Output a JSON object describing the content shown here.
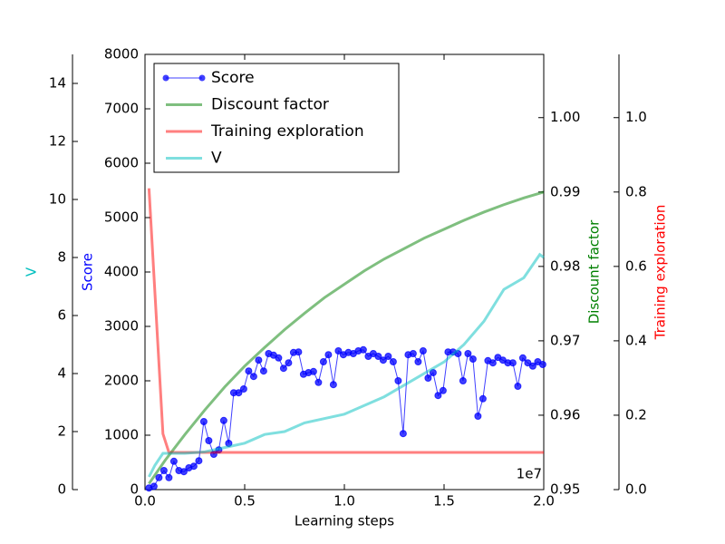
{
  "chart_data": {
    "type": "line",
    "x_label": "Learning steps",
    "x_offset_label": "1e7",
    "xlim": [
      0,
      2.0
    ],
    "xticks": [
      {
        "value": 0,
        "label": "0.0"
      },
      0.5,
      {
        "value": 1,
        "label": "1.0"
      },
      1.5,
      {
        "value": 2,
        "label": "2.0"
      }
    ],
    "legend": "upper left",
    "axes": [
      {
        "label": "Score",
        "ylim": [
          0,
          8000
        ],
        "yticks": [
          0,
          1000,
          2000,
          3000,
          4000,
          5000,
          6000,
          7000,
          8000
        ]
      },
      {
        "label": "Discount factor",
        "ylim": [
          0.95,
          1.0085
        ],
        "yticks": [
          0.95,
          0.96,
          0.97,
          0.98,
          0.99,
          {
            "value": 1,
            "label": "1.00"
          }
        ]
      },
      {
        "label": "Training exploration",
        "ylim": [
          0,
          1.17
        ],
        "yticks": [
          {
            "value": 0,
            "label": "0.0"
          },
          0.2,
          0.4,
          0.6,
          0.8,
          {
            "value": 1,
            "label": "1.0"
          }
        ]
      },
      {
        "label": "V",
        "ylim": [
          0,
          15
        ],
        "yticks": [
          0,
          2,
          4,
          6,
          8,
          10,
          12,
          14
        ]
      }
    ],
    "series": [
      {
        "name": "Score",
        "color": "#0000ff",
        "axis": 0,
        "marker": true,
        "x": [
          0.02,
          0.045,
          0.07,
          0.095,
          0.12,
          0.145,
          0.17,
          0.195,
          0.22,
          0.245,
          0.27,
          0.295,
          0.32,
          0.345,
          0.37,
          0.395,
          0.42,
          0.445,
          0.47,
          0.495,
          0.52,
          0.545,
          0.57,
          0.595,
          0.62,
          0.645,
          0.67,
          0.695,
          0.72,
          0.745,
          0.77,
          0.795,
          0.82,
          0.845,
          0.87,
          0.895,
          0.92,
          0.945,
          0.97,
          0.995,
          1.02,
          1.045,
          1.07,
          1.095,
          1.12,
          1.145,
          1.17,
          1.195,
          1.22,
          1.245,
          1.27,
          1.295,
          1.32,
          1.345,
          1.37,
          1.395,
          1.42,
          1.445,
          1.47,
          1.495,
          1.52,
          1.545,
          1.57,
          1.595,
          1.62,
          1.645,
          1.67,
          1.695,
          1.72,
          1.745,
          1.77,
          1.795,
          1.82,
          1.845,
          1.87,
          1.895,
          1.92,
          1.945,
          1.97,
          1.995
        ],
        "values": [
          30,
          60,
          220,
          350,
          220,
          520,
          350,
          330,
          400,
          430,
          530,
          1250,
          900,
          650,
          730,
          1270,
          850,
          1780,
          1780,
          1850,
          2180,
          2080,
          2380,
          2180,
          2500,
          2470,
          2420,
          2230,
          2330,
          2520,
          2530,
          2120,
          2150,
          2170,
          1970,
          2350,
          2480,
          1930,
          2550,
          2480,
          2520,
          2500,
          2550,
          2570,
          2450,
          2500,
          2450,
          2380,
          2450,
          2350,
          2000,
          1030,
          2480,
          2500,
          2350,
          2550,
          2050,
          2150,
          1730,
          1820,
          2530,
          2530,
          2500,
          2000,
          2500,
          2400,
          1350,
          1670,
          2370,
          2330,
          2430,
          2380,
          2330,
          2330,
          1900,
          2420,
          2330,
          2270,
          2350,
          2300
        ]
      },
      {
        "name": "Discount factor",
        "color": "#008000",
        "axis": 1,
        "x": [
          0.02,
          0.1,
          0.2,
          0.3,
          0.4,
          0.5,
          0.6,
          0.7,
          0.8,
          0.9,
          1.0,
          1.1,
          1.2,
          1.3,
          1.4,
          1.5,
          1.6,
          1.7,
          1.8,
          1.9,
          2.0
        ],
        "values": [
          0.9508,
          0.9539,
          0.9574,
          0.9607,
          0.9638,
          0.9666,
          0.9691,
          0.9715,
          0.9737,
          0.9758,
          0.9776,
          0.9794,
          0.981,
          0.9824,
          0.9838,
          0.985,
          0.9862,
          0.9873,
          0.9883,
          0.9892,
          0.99
        ]
      },
      {
        "name": "Training exploration",
        "color": "#ff0000",
        "axis": 2,
        "x": [
          0.02,
          0.09,
          0.12,
          2.0
        ],
        "values": [
          0.81,
          0.15,
          0.1,
          0.1
        ]
      },
      {
        "name": "V",
        "color": "#00bfbf",
        "axis": 3,
        "x": [
          0.02,
          0.05,
          0.09,
          0.2,
          0.3,
          0.5,
          0.6,
          0.7,
          0.8,
          1.0,
          1.2,
          1.3,
          1.5,
          1.6,
          1.7,
          1.8,
          1.9,
          1.95,
          1.98,
          2.0
        ],
        "values": [
          0.44,
          0.84,
          1.25,
          1.25,
          1.3,
          1.6,
          1.9,
          2.0,
          2.3,
          2.6,
          3.2,
          3.6,
          4.4,
          5.0,
          5.8,
          6.9,
          7.3,
          7.8,
          8.1,
          8.0
        ]
      }
    ]
  }
}
